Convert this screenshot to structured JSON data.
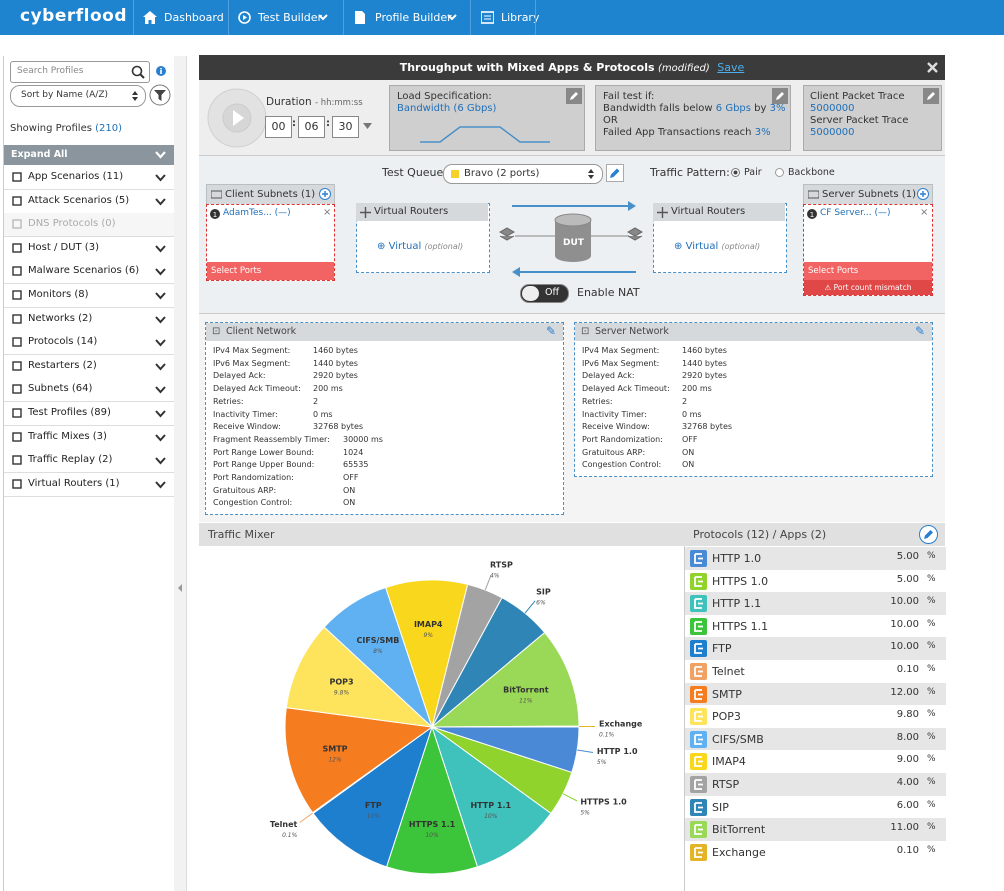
{
  "nav": {
    "logo": "cyberflood",
    "items": [
      "Dashboard",
      "Test Builder",
      "Profile Builder",
      "Library"
    ]
  },
  "sidebar": {
    "search_placeholder": "Search Profiles",
    "sort": "Sort by Name (A/Z)",
    "showing": "Showing Profiles",
    "showing_count": "(210)",
    "expand_all": "Expand All",
    "groups": [
      {
        "name": "App Scenarios (11)"
      },
      {
        "name": "Attack Scenarios (5)"
      },
      {
        "name": "DNS Protocols (0)",
        "disabled": true
      },
      {
        "name": "Host / DUT (3)"
      },
      {
        "name": "Malware Scenarios (6)"
      },
      {
        "name": "Monitors (8)"
      },
      {
        "name": "Networks (2)"
      },
      {
        "name": "Protocols (14)"
      },
      {
        "name": "Restarters (2)"
      },
      {
        "name": "Subnets (64)"
      },
      {
        "name": "Test Profiles (89)"
      },
      {
        "name": "Traffic Mixes (3)"
      },
      {
        "name": "Traffic Replay (2)"
      },
      {
        "name": "Virtual Routers (1)"
      }
    ]
  },
  "test": {
    "title": "Throughput with Mixed Apps & Protocols",
    "modified": "(modified)",
    "save": "Save",
    "duration_label": "Duration",
    "duration_format": "- hh:mm:ss",
    "duration": [
      "00",
      "06",
      "30"
    ],
    "load_spec_label": "Load Specification:",
    "load_spec_value": "Bandwidth (6 Gbps)",
    "fail_label": "Fail test if:",
    "fail_line1": "Bandwidth falls below",
    "fail_v1": "6 Gbps",
    "fail_by": "by",
    "fail_p1": "3%",
    "fail_or": "OR",
    "fail_line2": "Failed App Transactions reach",
    "fail_p2": "3%",
    "client_trace": "Client Packet Trace",
    "client_trace_value": "5000000",
    "server_trace": "Server Packet Trace",
    "server_trace_value": "5000000",
    "queue_label": "Test Queue",
    "queue": "Bravo (2 ports)",
    "pattern_label": "Traffic Pattern:",
    "patterns": [
      "Pair",
      "Backbone"
    ],
    "client_subnets": "Client Subnets (1)",
    "client_subnet": "AdamTes...",
    "subnet_dash": "(—)",
    "select_ports": "Select Ports",
    "virtual_routers": "Virtual Routers",
    "virtual": "Virtual",
    "optional": "(optional)",
    "dut": "DUT",
    "nat_toggle": "Off",
    "nat": "Enable NAT",
    "server_subnets": "Server Subnets (1)",
    "server_subnet": "CF Server...",
    "mismatch": "Port count mismatch"
  },
  "client_network": {
    "title": "Client Network",
    "rows": [
      [
        "IPv4 Max Segment:",
        "1460 bytes"
      ],
      [
        "IPv6 Max Segment:",
        "1440 bytes"
      ],
      [
        "Delayed Ack:",
        "2920 bytes"
      ],
      [
        "Delayed Ack Timeout:",
        "200 ms"
      ],
      [
        "Retries:",
        "2"
      ],
      [
        "Inactivity Timer:",
        "0 ms"
      ],
      [
        "Receive Window:",
        "32768 bytes"
      ],
      [
        "Fragment Reassembly Timer:",
        "30000 ms"
      ],
      [
        "Port Range Lower Bound:",
        "1024"
      ],
      [
        "Port Range Upper Bound:",
        "65535"
      ],
      [
        "Port Randomization:",
        "OFF"
      ],
      [
        "Gratuitous ARP:",
        "ON"
      ],
      [
        "Congestion Control:",
        "ON"
      ]
    ]
  },
  "server_network": {
    "title": "Server Network",
    "rows": [
      [
        "IPv4 Max Segment:",
        "1460 bytes"
      ],
      [
        "IPv6 Max Segment:",
        "1440 bytes"
      ],
      [
        "Delayed Ack:",
        "2920 bytes"
      ],
      [
        "Delayed Ack Timeout:",
        "200 ms"
      ],
      [
        "Retries:",
        "2"
      ],
      [
        "Inactivity Timer:",
        "0 ms"
      ],
      [
        "Receive Window:",
        "32768 bytes"
      ],
      [
        "Port Randomization:",
        "OFF"
      ],
      [
        "Gratuitous ARP:",
        "ON"
      ],
      [
        "Congestion Control:",
        "ON"
      ]
    ]
  },
  "mixer": {
    "title": "Traffic Mixer",
    "protocols_title": "Protocols (12) / Apps (2)",
    "unit": "%",
    "values": [
      "5.00",
      "5.00",
      "10.00",
      "10.00",
      "10.00",
      "0.10",
      "12.00",
      "9.80",
      "8.00",
      "9.00",
      "4.00",
      "6.00",
      "11.00",
      "0.10"
    ]
  },
  "chart_data": {
    "type": "pie",
    "categories": [
      "HTTP 1.0",
      "HTTPS 1.0",
      "HTTP 1.1",
      "HTTPS 1.1",
      "FTP",
      "Telnet",
      "SMTP",
      "POP3",
      "CIFS/SMB",
      "IMAP4",
      "RTSP",
      "SIP",
      "BitTorrent",
      "Exchange"
    ],
    "values": [
      5,
      5,
      10,
      10,
      10,
      0.1,
      12,
      9.8,
      8,
      9,
      4,
      6,
      11,
      0.1
    ],
    "value_labels": [
      "5%",
      "5%",
      "10%",
      "10%",
      "10%",
      "0.1%",
      "12%",
      "9.8%",
      "8%",
      "9%",
      "4%",
      "6%",
      "11%",
      "0.1%"
    ],
    "colors": [
      "#4a89d6",
      "#8fd32c",
      "#3fc1bc",
      "#3cc43a",
      "#1e7fcf",
      "#f0a264",
      "#f57d1f",
      "#fde45c",
      "#60b1f2",
      "#f9d71d",
      "#a3a3a3",
      "#2f86b6",
      "#9ad857",
      "#e3b427"
    ]
  }
}
